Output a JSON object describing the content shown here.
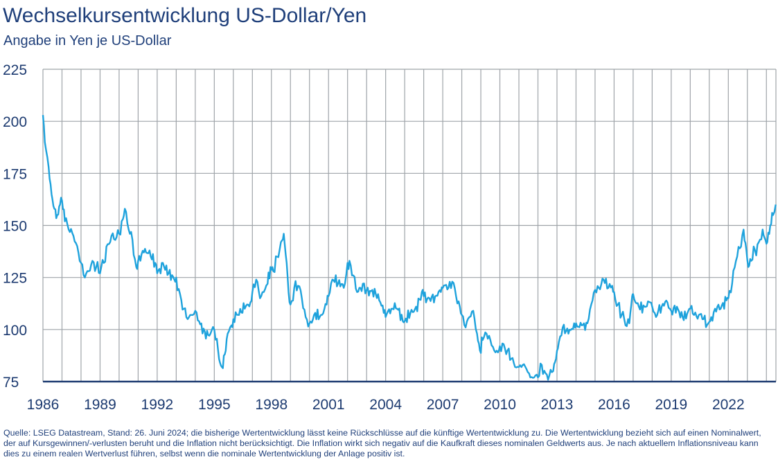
{
  "header": {
    "title": "Wechselkursentwicklung US-Dollar/Yen",
    "subtitle": "Angabe in Yen je US-Dollar"
  },
  "footnote": "Quelle: LSEG Datastream, Stand: 26. Juni 2024; die bisherige Wertentwicklung lässt keine Rückschlüsse auf die künftige Wertentwicklung zu. Die Wertentwicklung bezieht sich auf einen Nominalwert, der auf Kursgewinnen/-verlusten beruht und die Inflation nicht berücksichtigt. Die Inflation wirkt sich negativ auf die Kaufkraft dieses nominalen Geldwerts aus. Je nach aktuellem Inflationsniveau kann dies zu einem realen Wertverlust führen, selbst wenn die nominale Wertentwicklung der Anlage positiv ist.",
  "colors": {
    "line": "#1ea2dc",
    "text": "#1f3f7a",
    "grid": "#9ea3a8",
    "axis": "#1c3a70"
  },
  "chart_data": {
    "type": "line",
    "title": "Wechselkursentwicklung US-Dollar/Yen",
    "subtitle": "Angabe in Yen je US-Dollar",
    "xlabel": "",
    "ylabel": "",
    "xlim": [
      1986.0,
      2024.5
    ],
    "ylim": [
      75,
      225
    ],
    "y_ticks": [
      75,
      100,
      125,
      150,
      175,
      200,
      225
    ],
    "x_ticks": [
      1986,
      1989,
      1992,
      1995,
      1998,
      2001,
      2004,
      2007,
      2010,
      2013,
      2016,
      2019,
      2022
    ],
    "x_tick_labels": [
      "1986",
      "1989",
      "1992",
      "1995",
      "1998",
      "2001",
      "2004",
      "2007",
      "2010",
      "2013",
      "2016",
      "2019",
      "2022"
    ],
    "grid": true,
    "series": [
      {
        "values": [
          [
            1986.0,
            203
          ],
          [
            1986.1,
            190
          ],
          [
            1986.3,
            178
          ],
          [
            1986.45,
            165
          ],
          [
            1986.6,
            158
          ],
          [
            1986.75,
            155
          ],
          [
            1986.9,
            160
          ],
          [
            1987.0,
            162
          ],
          [
            1987.15,
            152
          ],
          [
            1987.35,
            148
          ],
          [
            1987.6,
            145
          ],
          [
            1987.8,
            140
          ],
          [
            1988.0,
            132
          ],
          [
            1988.2,
            125
          ],
          [
            1988.4,
            128
          ],
          [
            1988.6,
            133
          ],
          [
            1988.8,
            130
          ],
          [
            1989.0,
            127
          ],
          [
            1989.2,
            132
          ],
          [
            1989.4,
            141
          ],
          [
            1989.6,
            145
          ],
          [
            1989.8,
            143
          ],
          [
            1990.0,
            146
          ],
          [
            1990.2,
            153
          ],
          [
            1990.3,
            158
          ],
          [
            1990.5,
            148
          ],
          [
            1990.7,
            143
          ],
          [
            1990.9,
            130
          ],
          [
            1991.0,
            133
          ],
          [
            1991.3,
            137
          ],
          [
            1991.6,
            138
          ],
          [
            1991.9,
            132
          ],
          [
            1992.0,
            127
          ],
          [
            1992.3,
            132
          ],
          [
            1992.6,
            127
          ],
          [
            1992.9,
            124
          ],
          [
            1993.0,
            125
          ],
          [
            1993.2,
            117
          ],
          [
            1993.4,
            110
          ],
          [
            1993.6,
            105
          ],
          [
            1993.8,
            107
          ],
          [
            1994.0,
            109
          ],
          [
            1994.2,
            104
          ],
          [
            1994.5,
            99
          ],
          [
            1994.8,
            98
          ],
          [
            1995.0,
            100
          ],
          [
            1995.2,
            90
          ],
          [
            1995.3,
            84
          ],
          [
            1995.4,
            82
          ],
          [
            1995.55,
            88
          ],
          [
            1995.7,
            98
          ],
          [
            1995.9,
            102
          ],
          [
            1996.0,
            105
          ],
          [
            1996.3,
            107
          ],
          [
            1996.6,
            110
          ],
          [
            1996.9,
            113
          ],
          [
            1997.0,
            118
          ],
          [
            1997.2,
            124
          ],
          [
            1997.4,
            115
          ],
          [
            1997.6,
            118
          ],
          [
            1997.8,
            122
          ],
          [
            1997.95,
            130
          ],
          [
            1998.1,
            128
          ],
          [
            1998.3,
            135
          ],
          [
            1998.5,
            142
          ],
          [
            1998.65,
            146
          ],
          [
            1998.8,
            132
          ],
          [
            1998.9,
            118
          ],
          [
            1999.0,
            112
          ],
          [
            1999.2,
            120
          ],
          [
            1999.4,
            121
          ],
          [
            1999.6,
            115
          ],
          [
            1999.8,
            106
          ],
          [
            2000.0,
            103
          ],
          [
            2000.3,
            108
          ],
          [
            2000.6,
            107
          ],
          [
            2000.9,
            112
          ],
          [
            2001.0,
            116
          ],
          [
            2001.2,
            124
          ],
          [
            2001.5,
            122
          ],
          [
            2001.8,
            120
          ],
          [
            2002.0,
            132
          ],
          [
            2002.1,
            133
          ],
          [
            2002.3,
            126
          ],
          [
            2002.5,
            118
          ],
          [
            2002.8,
            122
          ],
          [
            2003.0,
            119
          ],
          [
            2003.3,
            119
          ],
          [
            2003.6,
            117
          ],
          [
            2003.9,
            108
          ],
          [
            2004.0,
            106
          ],
          [
            2004.3,
            110
          ],
          [
            2004.6,
            110
          ],
          [
            2004.9,
            104
          ],
          [
            2005.0,
            104
          ],
          [
            2005.3,
            108
          ],
          [
            2005.6,
            111
          ],
          [
            2005.9,
            118
          ],
          [
            2006.0,
            116
          ],
          [
            2006.3,
            115
          ],
          [
            2006.6,
            116
          ],
          [
            2006.9,
            118
          ],
          [
            2007.0,
            120
          ],
          [
            2007.3,
            120
          ],
          [
            2007.5,
            123
          ],
          [
            2007.7,
            116
          ],
          [
            2007.9,
            111
          ],
          [
            2008.0,
            107
          ],
          [
            2008.2,
            101
          ],
          [
            2008.4,
            106
          ],
          [
            2008.6,
            109
          ],
          [
            2008.8,
            98
          ],
          [
            2008.95,
            90
          ],
          [
            2009.1,
            95
          ],
          [
            2009.3,
            98
          ],
          [
            2009.5,
            95
          ],
          [
            2009.7,
            90
          ],
          [
            2009.9,
            89
          ],
          [
            2010.0,
            92
          ],
          [
            2010.2,
            93
          ],
          [
            2010.4,
            90
          ],
          [
            2010.6,
            86
          ],
          [
            2010.8,
            82
          ],
          [
            2011.0,
            82
          ],
          [
            2011.2,
            83
          ],
          [
            2011.4,
            81
          ],
          [
            2011.6,
            77
          ],
          [
            2011.8,
            77
          ],
          [
            2012.0,
            77
          ],
          [
            2012.2,
            83
          ],
          [
            2012.4,
            79
          ],
          [
            2012.6,
            78
          ],
          [
            2012.8,
            80
          ],
          [
            2012.95,
            86
          ],
          [
            2013.1,
            94
          ],
          [
            2013.3,
            101
          ],
          [
            2013.6,
            98
          ],
          [
            2013.9,
            103
          ],
          [
            2014.0,
            103
          ],
          [
            2014.3,
            102
          ],
          [
            2014.6,
            103
          ],
          [
            2014.8,
            112
          ],
          [
            2015.0,
            119
          ],
          [
            2015.2,
            120
          ],
          [
            2015.45,
            124
          ],
          [
            2015.7,
            120
          ],
          [
            2015.9,
            121
          ],
          [
            2016.0,
            118
          ],
          [
            2016.2,
            112
          ],
          [
            2016.4,
            107
          ],
          [
            2016.6,
            102
          ],
          [
            2016.8,
            103
          ],
          [
            2016.95,
            116
          ],
          [
            2017.0,
            117
          ],
          [
            2017.3,
            111
          ],
          [
            2017.6,
            111
          ],
          [
            2017.9,
            113
          ],
          [
            2018.0,
            111
          ],
          [
            2018.2,
            106
          ],
          [
            2018.5,
            111
          ],
          [
            2018.8,
            113
          ],
          [
            2019.0,
            109
          ],
          [
            2019.3,
            111
          ],
          [
            2019.6,
            106
          ],
          [
            2019.9,
            109
          ],
          [
            2020.0,
            110
          ],
          [
            2020.2,
            107
          ],
          [
            2020.45,
            107
          ],
          [
            2020.7,
            105
          ],
          [
            2020.95,
            103
          ],
          [
            2021.1,
            106
          ],
          [
            2021.3,
            110
          ],
          [
            2021.6,
            110
          ],
          [
            2021.9,
            114
          ],
          [
            2022.0,
            115
          ],
          [
            2022.2,
            122
          ],
          [
            2022.4,
            133
          ],
          [
            2022.6,
            139
          ],
          [
            2022.8,
            148
          ],
          [
            2022.95,
            138
          ],
          [
            2023.05,
            130
          ],
          [
            2023.2,
            133
          ],
          [
            2023.4,
            138
          ],
          [
            2023.6,
            142
          ],
          [
            2023.8,
            148
          ],
          [
            2023.95,
            143
          ],
          [
            2024.05,
            142
          ],
          [
            2024.2,
            150
          ],
          [
            2024.35,
            155
          ],
          [
            2024.49,
            160
          ]
        ]
      }
    ]
  }
}
